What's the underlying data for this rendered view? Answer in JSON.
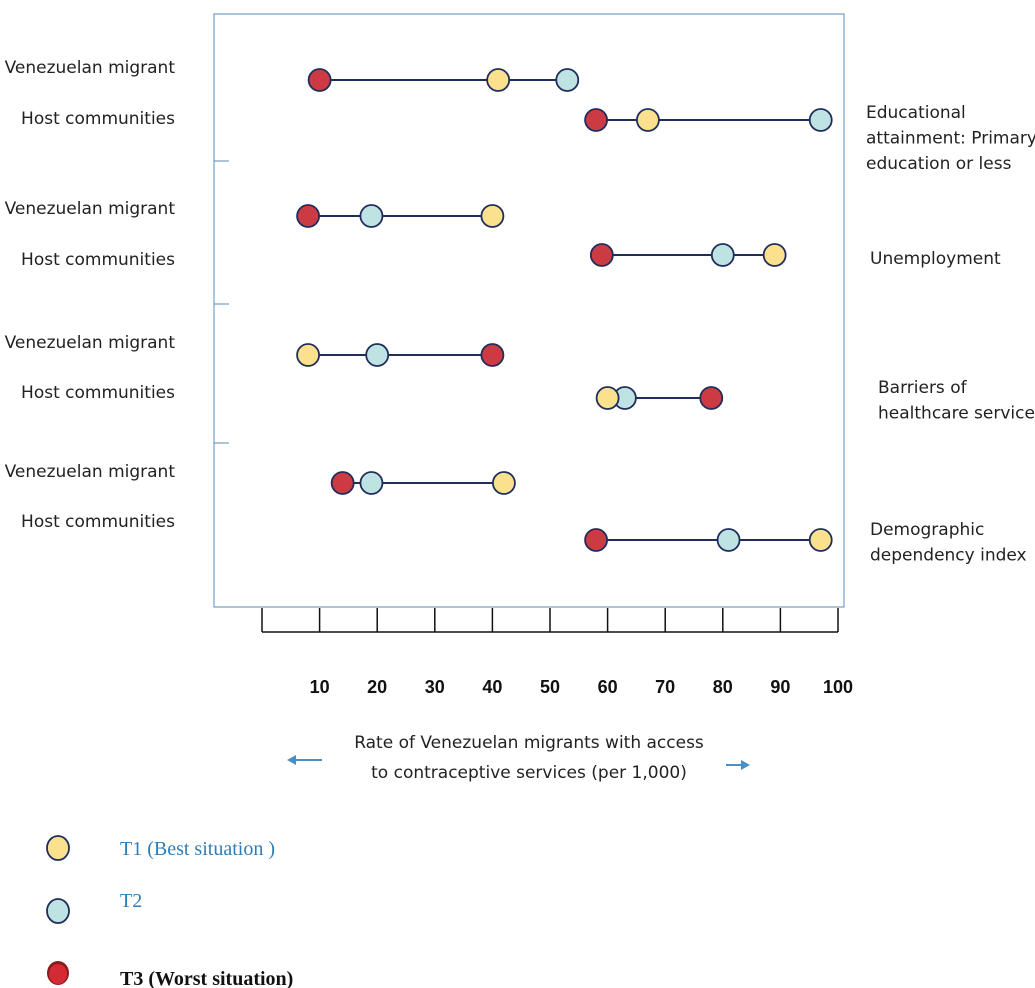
{
  "chart_data": {
    "type": "dumbbell",
    "xlabel": "Rate of Venezuelan migrants with access to contraceptive services (per 1,000)",
    "xlabel_lines": [
      "Rate of Venezuelan migrants with access",
      "to contraceptive services (per 1,000)"
    ],
    "xlim": [
      0,
      100
    ],
    "xticks": [
      10,
      20,
      30,
      40,
      50,
      60,
      70,
      80,
      90,
      100
    ],
    "grid": false,
    "legend_position": "bottom-left",
    "legend": [
      {
        "key": "T1",
        "label": "T1 (Best situation )",
        "color": "#FBE08E"
      },
      {
        "key": "T2",
        "label": "T2",
        "color": "#BFE3E3"
      },
      {
        "key": "T3",
        "label": "T3 (Worst situation)",
        "color": "#CC3B43"
      }
    ],
    "colors": {
      "T1": "#FBE08E",
      "T2": "#BFE3E3",
      "T3": "#CC3B43",
      "line": "#1F2D5A",
      "frame": "#5A8BB5",
      "arrow": "#4A90C8"
    },
    "groups": [
      {
        "name": "Educational attainment: Primary education or less",
        "name_lines": [
          "Educational",
          "attainment: Primary",
          "education or less"
        ],
        "rows": [
          {
            "label": "Venezuelan migrant",
            "T1": 41,
            "T2": 53,
            "T3": 10
          },
          {
            "label": "Host communities",
            "T1": 67,
            "T2": 97,
            "T3": 58
          }
        ]
      },
      {
        "name": "Unemployment",
        "name_lines": [
          "Unemployment"
        ],
        "rows": [
          {
            "label": "Venezuelan migrant",
            "T1": 40,
            "T2": 19,
            "T3": 8
          },
          {
            "label": "Host communities",
            "T1": 89,
            "T2": 80,
            "T3": 59
          }
        ]
      },
      {
        "name": "Barriers of healthcare services",
        "name_lines": [
          "Barriers of",
          "healthcare services"
        ],
        "rows": [
          {
            "label": "Venezuelan migrant",
            "T1": 8,
            "T2": 20,
            "T3": 40
          },
          {
            "label": "Host communities",
            "T1": 60,
            "T2": 63,
            "T3": 78
          }
        ]
      },
      {
        "name": "Demographic dependency index",
        "name_lines": [
          "Demographic",
          "dependency index"
        ],
        "rows": [
          {
            "label": "Venezuelan migrant",
            "T1": 42,
            "T2": 19,
            "T3": 14
          },
          {
            "label": "Host communities",
            "T1": 97,
            "T2": 81,
            "T3": 58
          }
        ]
      }
    ]
  }
}
